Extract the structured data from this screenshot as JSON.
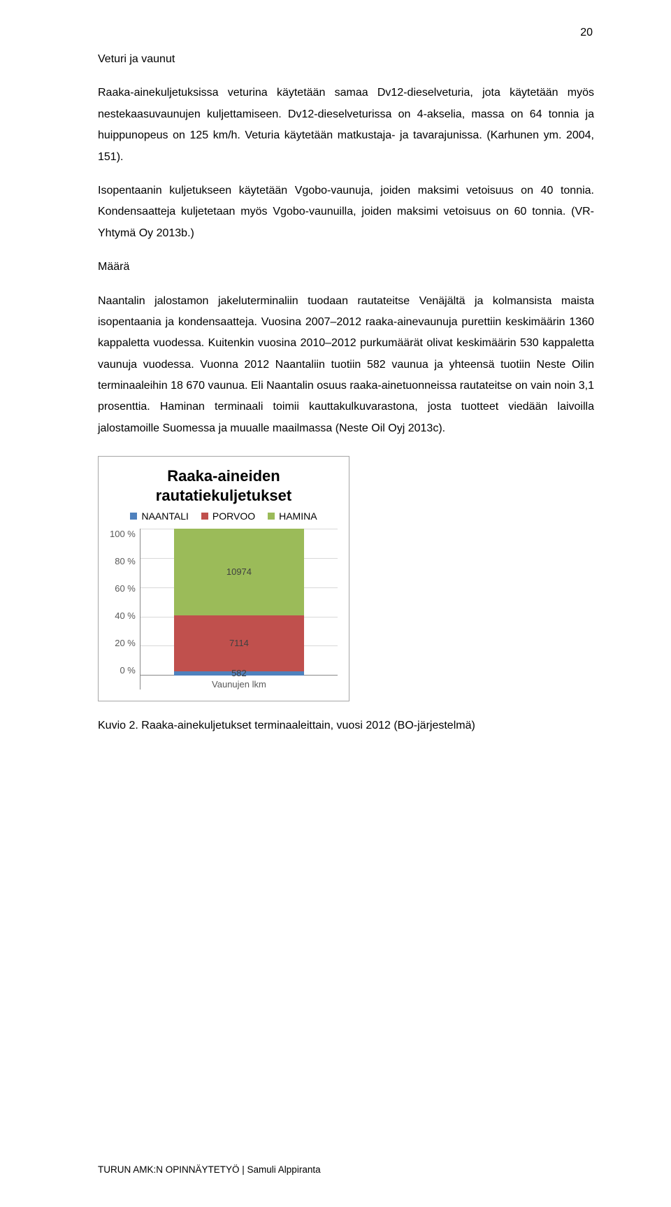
{
  "page_number": "20",
  "heading1": "Veturi ja vaunut",
  "para1": "Raaka-ainekuljetuksissa veturina käytetään samaa Dv12-dieselveturia, jota käytetään myös nestekaasuvaunujen kuljettamiseen. Dv12-dieselveturissa on 4-akselia, massa on 64 tonnia ja huippunopeus on 125 km/h. Veturia käytetään matkustaja- ja tavarajunissa. (Karhunen ym. 2004, 151).",
  "para2": "Isopentaanin kuljetukseen käytetään Vgobo-vaunuja, joiden maksimi vetoisuus on 40 tonnia. Kondensaatteja kuljetetaan myös Vgobo-vaunuilla, joiden maksimi vetoisuus on 60 tonnia. (VR-Yhtymä Oy 2013b.)",
  "heading2": "Määrä",
  "para3": "Naantalin jalostamon jakeluterminaliin tuodaan rautateitse Venäjältä ja kolmansista maista isopentaania ja kondensaatteja. Vuosina 2007–2012 raaka-ainevaunuja purettiin keskimäärin 1360 kappaletta vuodessa. Kuitenkin vuosina 2010–2012 purkumäärät olivat keskimäärin 530 kappaletta vaunuja vuodessa. Vuonna 2012 Naantaliin tuotiin 582 vaunua ja yhteensä tuotiin Neste Oilin terminaaleihin 18 670 vaunua. Eli Naantalin osuus raaka-ainetuonneissa rautateitse on vain noin 3,1 prosenttia. Haminan terminaali toimii kauttakulkuvarastona, josta tuotteet viedään laivoilla jalostamoille Suomessa ja muualle maailmassa (Neste Oil Oyj 2013c).",
  "chart": {
    "title_line1": "Raaka-aineiden",
    "title_line2": "rautatiekuljetukset",
    "legend": [
      {
        "label": "NAANTALI",
        "color": "#4f81bd"
      },
      {
        "label": "PORVOO",
        "color": "#c0504d"
      },
      {
        "label": "HAMINA",
        "color": "#9bbb59"
      }
    ],
    "y_ticks": [
      "100 %",
      "80 %",
      "60 %",
      "40 %",
      "20 %",
      "0 %"
    ],
    "x_label": "Vaunujen lkm",
    "segments": [
      {
        "value": 582,
        "label": "582",
        "color": "#4f81bd",
        "pct": 3.12
      },
      {
        "value": 7114,
        "label": "7114",
        "color": "#c0504d",
        "pct": 38.1
      },
      {
        "value": 10974,
        "label": "10974",
        "color": "#9bbb59",
        "pct": 58.78
      }
    ]
  },
  "caption": "Kuvio 2. Raaka-ainekuljetukset terminaaleittain, vuosi 2012 (BO-järjestelmä)",
  "footer": "TURUN AMK:N OPINNÄYTETYÖ | Samuli Alppiranta"
}
